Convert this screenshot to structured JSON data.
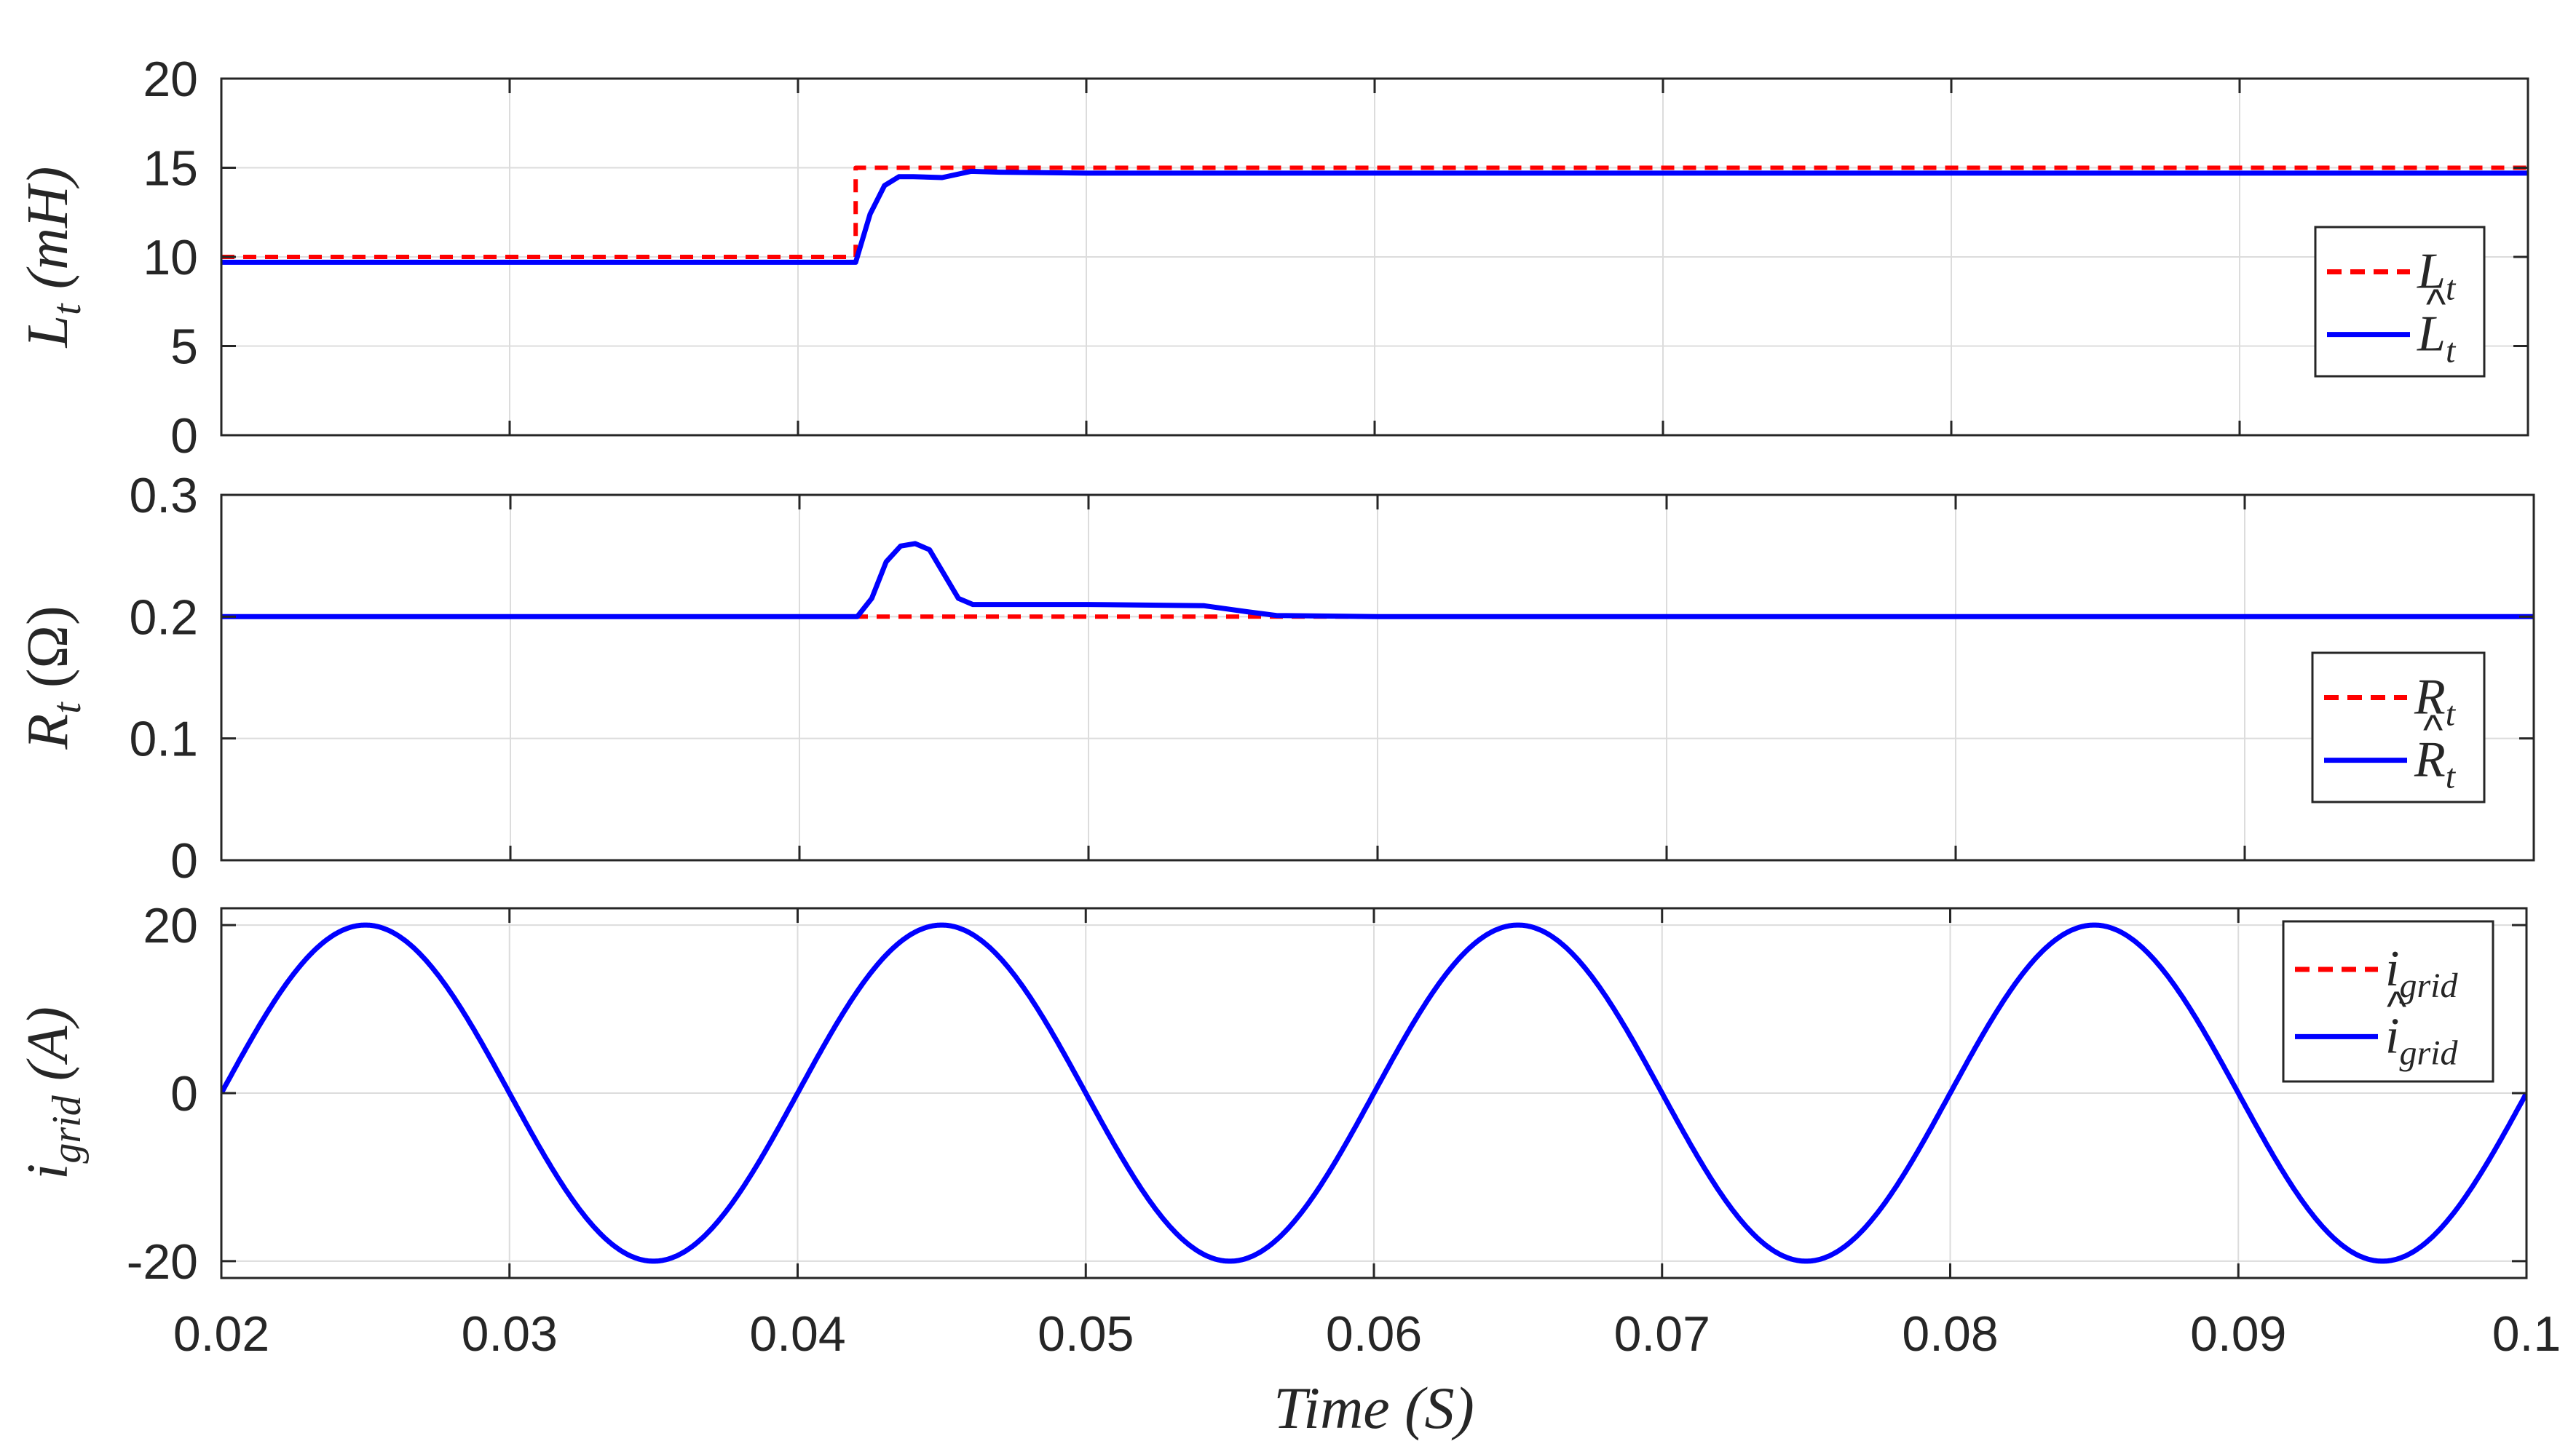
{
  "chart_data": [
    {
      "type": "line",
      "ylabel": "L_t (mH)",
      "ylabel_parts": {
        "sym": "L",
        "sub": "t",
        "unit": "(mH)"
      },
      "xlim": [
        0.02,
        0.1
      ],
      "ylim": [
        0,
        20
      ],
      "yticks": [
        0,
        5,
        10,
        15,
        20
      ],
      "ytick_labels": [
        "0",
        "5",
        "10",
        "15",
        "20"
      ],
      "grid": true,
      "legend_position": "right",
      "series": [
        {
          "name": "L_t",
          "legend_sym": "L",
          "legend_sub": "t",
          "hat": false,
          "color": "#ff0000",
          "style": "dashed",
          "x": [
            0.02,
            0.042,
            0.042,
            0.1
          ],
          "y": [
            10,
            10,
            15,
            15
          ]
        },
        {
          "name": "L̂_t",
          "legend_sym": "L",
          "legend_sub": "t",
          "hat": true,
          "color": "#0000ff",
          "style": "solid",
          "x": [
            0.02,
            0.042,
            0.0425,
            0.043,
            0.0435,
            0.044,
            0.045,
            0.046,
            0.047,
            0.05,
            0.1
          ],
          "y": [
            9.7,
            9.7,
            12.4,
            14.0,
            14.5,
            14.5,
            14.45,
            14.8,
            14.75,
            14.7,
            14.7
          ]
        }
      ]
    },
    {
      "type": "line",
      "ylabel": "R_t (Ω)",
      "ylabel_parts": {
        "sym": "R",
        "sub": "t",
        "unit": "(Ω)"
      },
      "xlim": [
        0.02,
        0.1
      ],
      "ylim": [
        0,
        0.3
      ],
      "yticks": [
        0,
        0.1,
        0.2,
        0.3
      ],
      "ytick_labels": [
        "0",
        "0.1",
        "0.2",
        "0.3"
      ],
      "grid": true,
      "legend_position": "right",
      "series": [
        {
          "name": "R_t",
          "legend_sym": "R",
          "legend_sub": "t",
          "hat": false,
          "color": "#ff0000",
          "style": "dashed",
          "x": [
            0.02,
            0.1
          ],
          "y": [
            0.2,
            0.2
          ]
        },
        {
          "name": "R̂_t",
          "legend_sym": "R",
          "legend_sub": "t",
          "hat": true,
          "color": "#0000ff",
          "style": "solid",
          "x": [
            0.02,
            0.042,
            0.0425,
            0.043,
            0.0435,
            0.044,
            0.0445,
            0.045,
            0.0455,
            0.046,
            0.05,
            0.054,
            0.0555,
            0.0565,
            0.06,
            0.1
          ],
          "y": [
            0.2,
            0.2,
            0.215,
            0.245,
            0.258,
            0.26,
            0.255,
            0.235,
            0.215,
            0.21,
            0.21,
            0.209,
            0.204,
            0.201,
            0.2,
            0.2
          ]
        }
      ]
    },
    {
      "type": "line",
      "ylabel": "i_grid (A)",
      "ylabel_parts": {
        "sym": "i",
        "sub": "grid",
        "unit": "(A)"
      },
      "xlabel": "Time (S)",
      "xlim": [
        0.02,
        0.1
      ],
      "ylim": [
        -22,
        22
      ],
      "yticks": [
        -20,
        0,
        20
      ],
      "ytick_labels": [
        "-20",
        "0",
        "20"
      ],
      "xticks": [
        0.02,
        0.03,
        0.04,
        0.05,
        0.06,
        0.07,
        0.08,
        0.09,
        0.1
      ],
      "xtick_labels": [
        "0.02",
        "0.03",
        "0.04",
        "0.05",
        "0.06",
        "0.07",
        "0.08",
        "0.09",
        "0.1"
      ],
      "grid": true,
      "legend_position": "top-right",
      "series": [
        {
          "name": "i_grid",
          "legend_sym": "i",
          "legend_sub": "grid",
          "hat": false,
          "color": "#ff0000",
          "style": "dashed",
          "function": "20*sin(2*pi*50*(t-0.02))",
          "amplitude": 20,
          "frequency_hz": 50
        },
        {
          "name": "î_grid",
          "legend_sym": "i",
          "legend_sub": "grid",
          "hat": true,
          "color": "#0000ff",
          "style": "solid",
          "function": "20*sin(2*pi*50*(t-0.02))",
          "amplitude": 20,
          "frequency_hz": 50
        }
      ]
    }
  ]
}
